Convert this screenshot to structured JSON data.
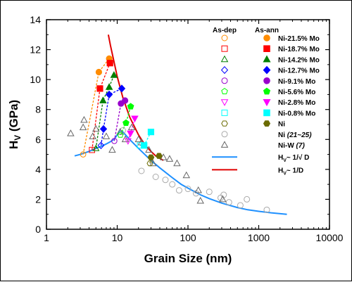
{
  "chart_data": {
    "type": "scatter",
    "title": "",
    "xlabel": "Grain Size (nm)",
    "ylabel_main": "H",
    "ylabel_sub": "V",
    "ylabel_unit": " (GPa)",
    "x_scale": "log",
    "xlim": [
      1,
      10000
    ],
    "ylim": [
      0,
      14
    ],
    "x_ticks": [
      1,
      10,
      100,
      1000,
      10000
    ],
    "x_tick_labels": [
      "1",
      "10",
      "100",
      "1000",
      "10000"
    ],
    "y_ticks": [
      0,
      2,
      4,
      6,
      8,
      10,
      12,
      14
    ],
    "y_tick_labels": [
      "0",
      "2",
      "4",
      "6",
      "8",
      "10",
      "12",
      "14"
    ],
    "grid": false,
    "legend_placement": "top-right",
    "legend_headers": [
      "As-dep",
      "As-ann"
    ],
    "series": [
      {
        "name": "Ni-21.5% Mo",
        "color": "#ff8c00",
        "marker": "circle",
        "as_dep": [
          3.3,
          5.0
        ],
        "as_ann": [
          [
            5.5,
            10.5
          ],
          [
            7.7,
            11.4
          ]
        ]
      },
      {
        "name": "Ni-18.7% Mo",
        "color": "#ff0000",
        "marker": "square",
        "as_dep": [
          4.4,
          5.3
        ],
        "as_ann": [
          [
            5.7,
            9.4
          ],
          [
            7.9,
            11.1
          ]
        ]
      },
      {
        "name": "Ni-14.2% Mo",
        "color": "#008000",
        "marker": "triangle-up",
        "as_dep": [
          5.0,
          5.4
        ],
        "as_ann": [
          [
            6.3,
            8.6
          ],
          [
            7.7,
            9.5
          ],
          [
            9.0,
            10.3
          ]
        ]
      },
      {
        "name": "Ni-12.7% Mo",
        "color": "#0000ff",
        "marker": "diamond",
        "as_dep": [
          5.9,
          5.6
        ],
        "as_ann": [
          [
            6.4,
            6.7
          ],
          [
            7.7,
            9.0
          ],
          [
            11.6,
            9.4
          ]
        ]
      },
      {
        "name": "Ni-9.1% Mo",
        "color": "#9900cc",
        "marker": "circle",
        "as_dep": [
          9.1,
          5.9
        ],
        "as_ann": [
          [
            11.3,
            8.4
          ],
          [
            12.9,
            8.6
          ]
        ]
      },
      {
        "name": "Ni-5.6% Mo",
        "color": "#00ff00",
        "marker": "pentagon",
        "as_dep": [
          11.1,
          6.3
        ],
        "as_ann": [
          [
            13.3,
            7.1
          ],
          [
            15.5,
            8.2
          ]
        ]
      },
      {
        "name": "Ni-2.8% Mo",
        "color": "#ff00ff",
        "marker": "triangle-down",
        "as_dep": [
          14.2,
          5.9
        ],
        "as_ann": [
          [
            15.4,
            6.4
          ],
          [
            17.7,
            7.4
          ]
        ]
      },
      {
        "name": "Ni-0.8% Mo",
        "color": "#00ffff",
        "marker": "square",
        "as_dep": [
          21.0,
          5.6
        ],
        "as_ann": [
          [
            24.0,
            5.6
          ],
          [
            30.0,
            6.5
          ]
        ]
      },
      {
        "name": "Ni",
        "color": "#6b6b00",
        "marker": "hexagon",
        "as_dep": [
          29.0,
          4.4
        ],
        "as_ann": [
          [
            30.0,
            4.8
          ],
          [
            39.0,
            4.9
          ]
        ]
      }
    ],
    "ni_ref": {
      "name": "Ni",
      "ref": "(21~25)",
      "color": "#aaaaaa",
      "marker": "circle-open",
      "points": [
        [
          12,
          6.6
        ],
        [
          22,
          3.9
        ],
        [
          35,
          3.5
        ],
        [
          48,
          3.3
        ],
        [
          60,
          3.0
        ],
        [
          75,
          2.6
        ],
        [
          100,
          2.7
        ],
        [
          130,
          2.4
        ],
        [
          200,
          2.5
        ],
        [
          290,
          2.1
        ],
        [
          320,
          2.3
        ],
        [
          380,
          1.8
        ],
        [
          550,
          1.6
        ],
        [
          680,
          2.0
        ],
        [
          1300,
          1.3
        ]
      ]
    },
    "niw_ref": {
      "name": "Ni-W",
      "ref": "(7)",
      "color": "#666666",
      "marker": "triangle-open",
      "points": [
        [
          2.2,
          6.4
        ],
        [
          3.3,
          6.8
        ],
        [
          3.4,
          7.3
        ],
        [
          4.5,
          6.2
        ],
        [
          5.0,
          6.7
        ],
        [
          7.0,
          6.2
        ],
        [
          8.5,
          5.3
        ],
        [
          11,
          6.5
        ],
        [
          13,
          6.0
        ],
        [
          16,
          6.8
        ],
        [
          20,
          6.0
        ],
        [
          22,
          5.8
        ],
        [
          28,
          5.3
        ],
        [
          32,
          4.4
        ],
        [
          45,
          4.8
        ],
        [
          55,
          4.7
        ],
        [
          70,
          4.4
        ],
        [
          95,
          3.6
        ],
        [
          140,
          2.6
        ],
        [
          150,
          1.9
        ],
        [
          310,
          2.0
        ]
      ]
    },
    "fit_curves": [
      {
        "name": "Hᵥ~ 1/√ D",
        "label_main": "H",
        "label_sub": "V",
        "label_rest": "~ 1/√ D",
        "color": "#1e90ff",
        "formula": "inverse-sqrt",
        "x_range": [
          2.5,
          2500
        ]
      },
      {
        "name": "Hᵥ~ 1/D",
        "label_main": "H",
        "label_sub": "V",
        "label_rest": "~ 1/D",
        "color": "#e00000",
        "formula": "inverse",
        "x_range": [
          7.5,
          45
        ]
      }
    ],
    "blue_curve": [
      [
        2.5,
        4.9
      ],
      [
        3,
        5.0
      ],
      [
        4,
        5.2
      ],
      [
        5,
        5.4
      ],
      [
        6,
        5.55
      ],
      [
        7,
        5.7
      ],
      [
        8,
        5.85
      ],
      [
        9,
        6.0
      ],
      [
        10,
        6.3
      ],
      [
        11,
        6.6
      ],
      [
        12,
        6.5
      ],
      [
        15,
        6.0
      ],
      [
        20,
        5.4
      ],
      [
        30,
        4.6
      ],
      [
        40,
        4.1
      ],
      [
        60,
        3.45
      ],
      [
        80,
        3.0
      ],
      [
        100,
        2.75
      ],
      [
        150,
        2.3
      ],
      [
        200,
        2.05
      ],
      [
        300,
        1.75
      ],
      [
        500,
        1.45
      ],
      [
        700,
        1.3
      ],
      [
        1000,
        1.2
      ],
      [
        1500,
        1.1
      ],
      [
        2500,
        1.0
      ]
    ],
    "red_curve": [
      [
        7.5,
        13.0
      ],
      [
        8,
        12.3
      ],
      [
        9,
        11.2
      ],
      [
        10,
        10.2
      ],
      [
        12,
        8.8
      ],
      [
        15,
        7.5
      ],
      [
        20,
        6.3
      ],
      [
        25,
        5.6
      ],
      [
        30,
        5.2
      ],
      [
        35,
        4.9
      ],
      [
        45,
        4.6
      ]
    ]
  }
}
